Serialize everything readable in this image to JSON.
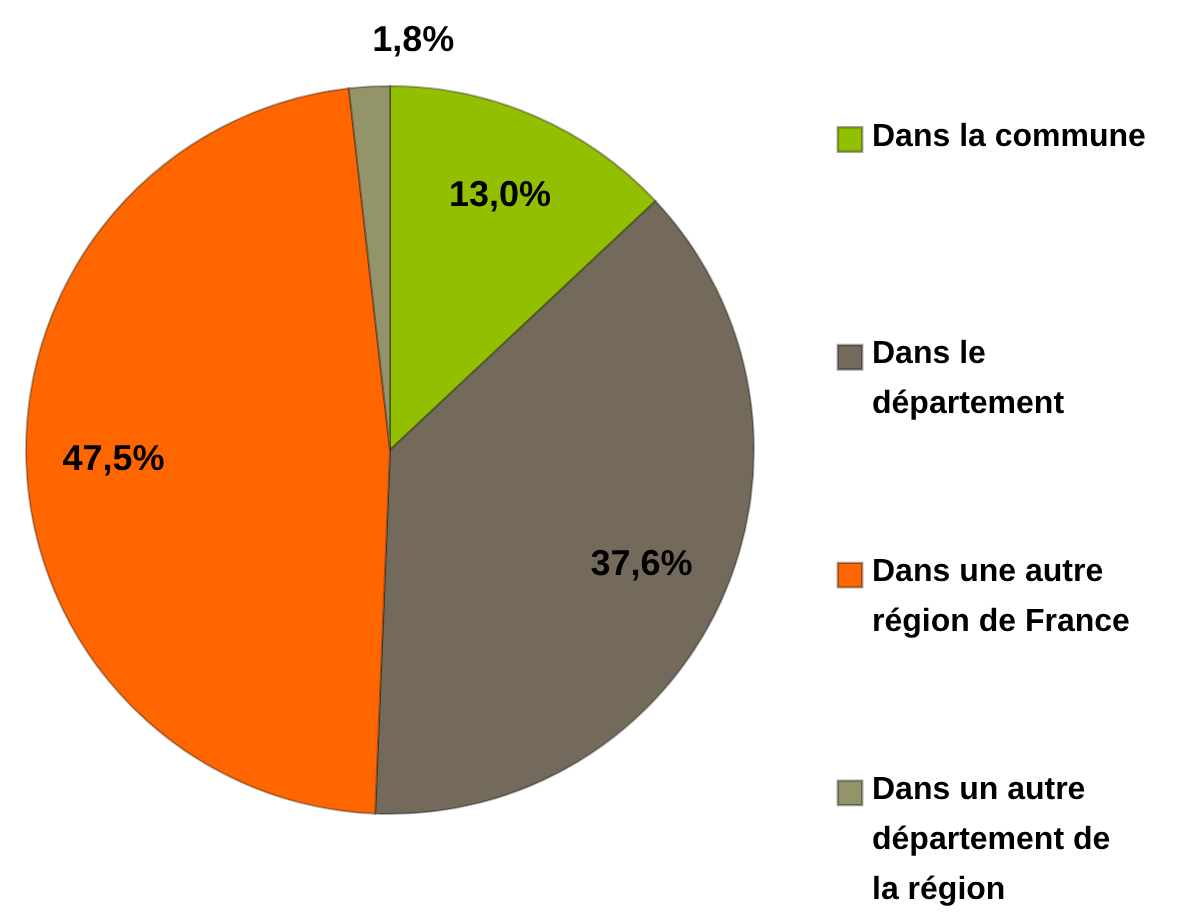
{
  "chart_data": {
    "type": "pie",
    "categories": [
      "Dans la commune",
      "Dans le département",
      "Dans une autre région de France",
      "Dans un autre département de la région"
    ],
    "values": [
      13.0,
      37.6,
      47.5,
      1.8
    ],
    "colors": [
      "#92c000",
      "#736a5b",
      "#ff6600",
      "#939469"
    ],
    "value_labels": [
      "13,0%",
      "37,6%",
      "47,5%",
      "1,8%"
    ],
    "legend": "right"
  }
}
